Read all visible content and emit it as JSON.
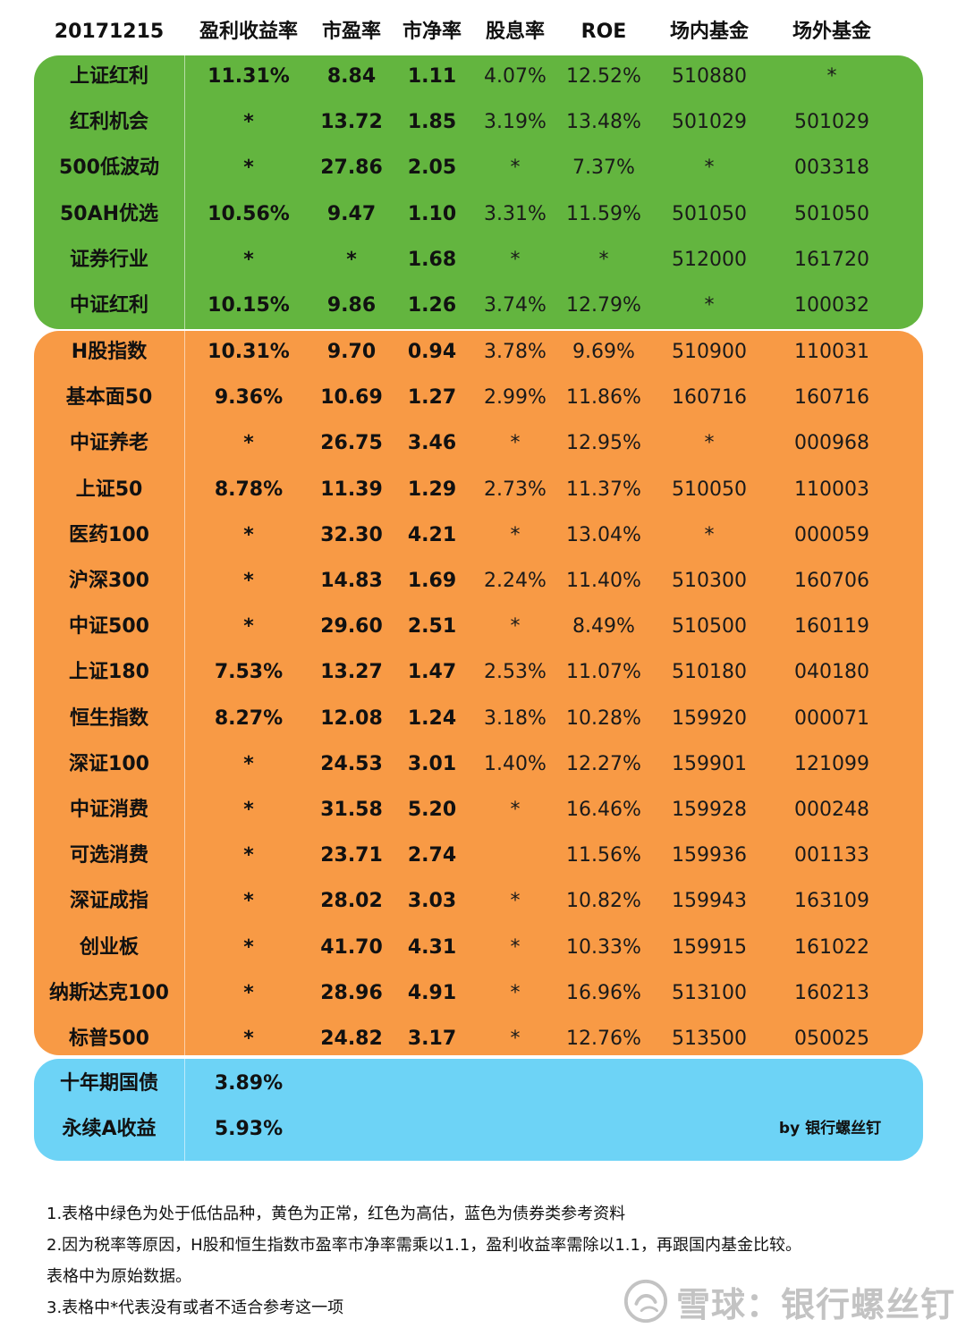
{
  "header": [
    "20171215",
    "盈利收益率",
    "市盈率",
    "市净率",
    "股息率",
    "ROE",
    "场内基金",
    "场外基金"
  ],
  "colors": {
    "green": "#63b53f",
    "orange": "#f89a45",
    "blue": "#6dd3f6"
  },
  "green_rows": [
    [
      "上证红利",
      "11.31%",
      "8.84",
      "1.11",
      "4.07%",
      "12.52%",
      "510880",
      "*"
    ],
    [
      "红利机会",
      "*",
      "13.72",
      "1.85",
      "3.19%",
      "13.48%",
      "501029",
      "501029"
    ],
    [
      "500低波动",
      "*",
      "27.86",
      "2.05",
      "*",
      "7.37%",
      "*",
      "003318"
    ],
    [
      "50AH优选",
      "10.56%",
      "9.47",
      "1.10",
      "3.31%",
      "11.59%",
      "501050",
      "501050"
    ],
    [
      "证券行业",
      "*",
      "*",
      "1.68",
      "*",
      "*",
      "512000",
      "161720"
    ],
    [
      "中证红利",
      "10.15%",
      "9.86",
      "1.26",
      "3.74%",
      "12.79%",
      "*",
      "100032"
    ]
  ],
  "orange_rows": [
    [
      "H股指数",
      "10.31%",
      "9.70",
      "0.94",
      "3.78%",
      "9.69%",
      "510900",
      "110031"
    ],
    [
      "基本面50",
      "9.36%",
      "10.69",
      "1.27",
      "2.99%",
      "11.86%",
      "160716",
      "160716"
    ],
    [
      "中证养老",
      "*",
      "26.75",
      "3.46",
      "*",
      "12.95%",
      "*",
      "000968"
    ],
    [
      "上证50",
      "8.78%",
      "11.39",
      "1.29",
      "2.73%",
      "11.37%",
      "510050",
      "110003"
    ],
    [
      "医药100",
      "*",
      "32.30",
      "4.21",
      "*",
      "13.04%",
      "*",
      "000059"
    ],
    [
      "沪深300",
      "*",
      "14.83",
      "1.69",
      "2.24%",
      "11.40%",
      "510300",
      "160706"
    ],
    [
      "中证500",
      "*",
      "29.60",
      "2.51",
      "*",
      "8.49%",
      "510500",
      "160119"
    ],
    [
      "上证180",
      "7.53%",
      "13.27",
      "1.47",
      "2.53%",
      "11.07%",
      "510180",
      "040180"
    ],
    [
      "恒生指数",
      "8.27%",
      "12.08",
      "1.24",
      "3.18%",
      "10.28%",
      "159920",
      "000071"
    ],
    [
      "深证100",
      "*",
      "24.53",
      "3.01",
      "1.40%",
      "12.27%",
      "159901",
      "121099"
    ],
    [
      "中证消费",
      "*",
      "31.58",
      "5.20",
      "*",
      "16.46%",
      "159928",
      "000248"
    ],
    [
      "可选消费",
      "*",
      "23.71",
      "2.74",
      "",
      "11.56%",
      "159936",
      "001133"
    ],
    [
      "深证成指",
      "*",
      "28.02",
      "3.03",
      "*",
      "10.82%",
      "159943",
      "163109"
    ],
    [
      "创业板",
      "*",
      "41.70",
      "4.31",
      "*",
      "10.33%",
      "159915",
      "161022"
    ],
    [
      "纳斯达克100",
      "*",
      "28.96",
      "4.91",
      "*",
      "16.96%",
      "513100",
      "160213"
    ],
    [
      "标普500",
      "*",
      "24.82",
      "3.17",
      "*",
      "12.76%",
      "513500",
      "050025"
    ]
  ],
  "blue_rows": [
    [
      "十年期国债",
      "3.89%"
    ],
    [
      "永续A收益",
      "5.93%"
    ]
  ],
  "credit": "by 银行螺丝钉",
  "notes": [
    "1.表格中绿色为处于低估品种，黄色为正常，红色为高估，蓝色为债券类参考资料",
    "2.因为税率等原因，H股和恒生指数市盈率市净率需乘以1.1，盈利收益率需除以1.1，再跟国内基金比较。",
    "表格中为原始数据。",
    "3.表格中*代表没有或者不适合参考这一项"
  ],
  "watermark": "雪球：银行螺丝钉"
}
